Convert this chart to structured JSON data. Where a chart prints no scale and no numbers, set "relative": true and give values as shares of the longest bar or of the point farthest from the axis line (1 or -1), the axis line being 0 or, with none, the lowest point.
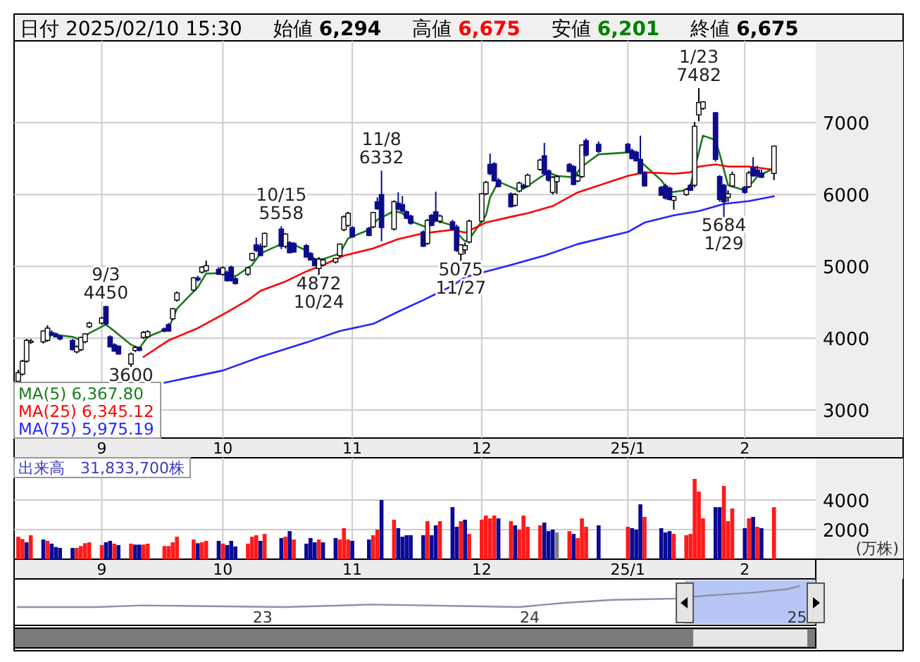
{
  "chart_data": [
    {
      "type": "candlestick",
      "grid": true,
      "legend": "bottom left",
      "annotations": [
        "日付 2025/02/10 15:30",
        "始値 **6,294**",
        "高値 **6,675**",
        "安値 **6,201**",
        "終値 **6,675**",
        {
          "text": "9/3",
          "x": "2024-09-03",
          "y": 4450
        },
        {
          "text": "4450",
          "x": "2024-09-03",
          "y": 4450
        },
        {
          "text": "3600",
          "x": "2024-09-09",
          "y": 3600
        },
        {
          "text": "10/15",
          "x": "2024-10-15",
          "y": 5558
        },
        {
          "text": "5558",
          "x": "2024-10-15",
          "y": 5558
        },
        {
          "text": "4872",
          "x": "2024-10-24",
          "y": 4872
        },
        {
          "text": "10/24",
          "x": "2024-10-24",
          "y": 4872
        },
        {
          "text": "11/8",
          "x": "2024-11-08",
          "y": 6332
        },
        {
          "text": "6332",
          "x": "2024-11-08",
          "y": 6332
        },
        {
          "text": "5075",
          "x": "2024-11-27",
          "y": 5075
        },
        {
          "text": "11/27",
          "x": "2024-11-27",
          "y": 5075
        },
        {
          "text": "1/23",
          "x": "2025-01-23",
          "y": 7482
        },
        {
          "text": "7482",
          "x": "2025-01-23",
          "y": 7482
        },
        {
          "text": "5684",
          "x": "2025-01-29",
          "y": 5684
        },
        {
          "text": "1/29",
          "x": "2025-01-29",
          "y": 5684
        }
      ],
      "x": [
        "2024-08-13",
        "2024-08-14",
        "2024-08-15",
        "2024-08-16",
        "2024-08-19",
        "2024-08-20",
        "2024-08-21",
        "2024-08-22",
        "2024-08-23",
        "2024-08-26",
        "2024-08-27",
        "2024-08-28",
        "2024-08-29",
        "2024-08-30",
        "2024-09-02",
        "2024-09-03",
        "2024-09-04",
        "2024-09-05",
        "2024-09-06",
        "2024-09-09",
        "2024-09-10",
        "2024-09-11",
        "2024-09-12",
        "2024-09-13",
        "2024-09-17",
        "2024-09-18",
        "2024-09-19",
        "2024-09-20",
        "2024-09-24",
        "2024-09-25",
        "2024-09-26",
        "2024-09-27",
        "2024-09-30",
        "2024-10-01",
        "2024-10-02",
        "2024-10-03",
        "2024-10-04",
        "2024-10-07",
        "2024-10-08",
        "2024-10-09",
        "2024-10-10",
        "2024-10-11",
        "2024-10-15",
        "2024-10-16",
        "2024-10-17",
        "2024-10-18",
        "2024-10-21",
        "2024-10-22",
        "2024-10-23",
        "2024-10-24",
        "2024-10-25",
        "2024-10-28",
        "2024-10-29",
        "2024-10-30",
        "2024-10-31",
        "2024-11-01",
        "2024-11-05",
        "2024-11-06",
        "2024-11-07",
        "2024-11-08",
        "2024-11-11",
        "2024-11-12",
        "2024-11-13",
        "2024-11-14",
        "2024-11-15",
        "2024-11-18",
        "2024-11-19",
        "2024-11-20",
        "2024-11-21",
        "2024-11-22",
        "2024-11-25",
        "2024-11-26",
        "2024-11-27",
        "2024-11-28",
        "2024-11-29",
        "2024-12-02",
        "2024-12-03",
        "2024-12-04",
        "2024-12-05",
        "2024-12-06",
        "2024-12-09",
        "2024-12-10",
        "2024-12-11",
        "2024-12-12",
        "2024-12-13",
        "2024-12-16",
        "2024-12-17",
        "2024-12-18",
        "2024-12-19",
        "2024-12-20",
        "2024-12-23",
        "2024-12-24",
        "2024-12-25",
        "2024-12-26",
        "2024-12-27",
        "2024-12-30",
        "2025-01-06",
        "2025-01-07",
        "2025-01-08",
        "2025-01-09",
        "2025-01-10",
        "2025-01-14",
        "2025-01-15",
        "2025-01-16",
        "2025-01-17",
        "2025-01-20",
        "2025-01-21",
        "2025-01-22",
        "2025-01-23",
        "2025-01-24",
        "2025-01-27",
        "2025-01-28",
        "2025-01-29",
        "2025-01-30",
        "2025-01-31",
        "2025-02-03",
        "2025-02-04",
        "2025-02-05",
        "2025-02-06",
        "2025-02-07",
        "2025-02-10"
      ],
      "ohlc": [
        [
          3400,
          3560,
          3380,
          3520
        ],
        [
          3500,
          3700,
          3480,
          3680
        ],
        [
          3680,
          3990,
          3660,
          3970
        ],
        [
          3950,
          3990,
          3920,
          3960
        ],
        [
          3950,
          4110,
          3930,
          4100
        ],
        [
          3970,
          4180,
          3950,
          4140
        ],
        [
          4080,
          4110,
          4030,
          4050
        ],
        [
          4060,
          4080,
          4010,
          4020
        ],
        [
          4030,
          4050,
          3970,
          3990
        ],
        [
          3970,
          3990,
          3830,
          3840
        ],
        [
          3810,
          3900,
          3790,
          3880
        ],
        [
          3840,
          4020,
          3820,
          4010
        ],
        [
          3950,
          4070,
          3930,
          4060
        ],
        [
          4160,
          4230,
          4140,
          4210
        ],
        [
          4210,
          4300,
          4190,
          4280
        ],
        [
          4440,
          4450,
          4180,
          4200
        ],
        [
          4020,
          4040,
          3870,
          3880
        ],
        [
          3910,
          3930,
          3810,
          3820
        ],
        [
          3890,
          3900,
          3770,
          3780
        ],
        [
          3640,
          3800,
          3600,
          3780
        ],
        [
          3830,
          3890,
          3810,
          3870
        ],
        [
          3870,
          3880,
          3820,
          3830
        ],
        [
          4010,
          4100,
          3990,
          4080
        ],
        [
          4020,
          4110,
          4000,
          4090
        ],
        [
          4130,
          4150,
          4080,
          4100
        ],
        [
          4190,
          4210,
          4090,
          4100
        ],
        [
          4270,
          4420,
          4250,
          4410
        ],
        [
          4530,
          4650,
          4510,
          4630
        ],
        [
          4670,
          4850,
          4650,
          4840
        ],
        [
          4840,
          4870,
          4790,
          4810
        ],
        [
          4920,
          5000,
          4900,
          4990
        ],
        [
          4940,
          5080,
          4920,
          5010
        ],
        [
          4960,
          4990,
          4880,
          4890
        ],
        [
          4890,
          5000,
          4870,
          4980
        ],
        [
          4920,
          4940,
          4790,
          4800
        ],
        [
          4990,
          5010,
          4790,
          4800
        ],
        [
          4830,
          4850,
          4750,
          4760
        ],
        [
          4890,
          4990,
          4870,
          4980
        ],
        [
          5090,
          5190,
          5070,
          5180
        ],
        [
          5300,
          5400,
          5200,
          5220
        ],
        [
          5280,
          5320,
          5140,
          5150
        ],
        [
          5280,
          5470,
          5260,
          5460
        ],
        [
          5520,
          5558,
          5240,
          5280
        ],
        [
          5280,
          5460,
          5250,
          5450
        ],
        [
          5330,
          5350,
          5180,
          5190
        ],
        [
          5320,
          5340,
          5190,
          5200
        ],
        [
          5290,
          5310,
          5120,
          5130
        ],
        [
          5180,
          5200,
          5080,
          5090
        ],
        [
          5100,
          5120,
          5000,
          5010
        ],
        [
          4970,
          5130,
          4872,
          5100
        ],
        [
          5020,
          5110,
          5000,
          5090
        ],
        [
          5060,
          5120,
          5040,
          5110
        ],
        [
          5150,
          5320,
          5130,
          5310
        ],
        [
          5510,
          5710,
          5490,
          5690
        ],
        [
          5570,
          5760,
          5550,
          5740
        ],
        [
          5540,
          5560,
          5400,
          5410
        ],
        [
          5530,
          5550,
          5420,
          5430
        ],
        [
          5550,
          5760,
          5530,
          5750
        ],
        [
          5900,
          5960,
          5790,
          5800
        ],
        [
          6000,
          6332,
          5350,
          5540
        ],
        [
          5520,
          5920,
          5500,
          5900
        ],
        [
          5880,
          6030,
          5780,
          5800
        ],
        [
          5860,
          5980,
          5750,
          5770
        ],
        [
          5760,
          5780,
          5660,
          5670
        ],
        [
          5700,
          5720,
          5580,
          5600
        ],
        [
          5480,
          5500,
          5270,
          5280
        ],
        [
          5320,
          5660,
          5300,
          5640
        ],
        [
          5710,
          5730,
          5560,
          5570
        ],
        [
          5760,
          6040,
          5620,
          5640
        ],
        [
          5630,
          5720,
          5600,
          5700
        ],
        [
          5620,
          5650,
          5500,
          5520
        ],
        [
          5550,
          5580,
          5200,
          5220
        ],
        [
          5170,
          5310,
          5075,
          5300
        ],
        [
          5230,
          5330,
          5170,
          5290
        ],
        [
          5340,
          5650,
          5320,
          5630
        ],
        [
          5630,
          6020,
          5610,
          6010
        ],
        [
          6010,
          6190,
          5990,
          6170
        ],
        [
          6420,
          6570,
          6270,
          6290
        ],
        [
          6430,
          6450,
          6180,
          6190
        ],
        [
          6200,
          6230,
          6100,
          6110
        ],
        [
          6010,
          6030,
          5820,
          5830
        ],
        [
          5850,
          6020,
          5830,
          6000
        ],
        [
          6050,
          6180,
          6030,
          6160
        ],
        [
          6130,
          6150,
          6080,
          6100
        ],
        [
          6120,
          6290,
          6100,
          6270
        ],
        [
          6350,
          6500,
          6330,
          6480
        ],
        [
          6540,
          6720,
          6270,
          6290
        ],
        [
          6330,
          6350,
          6180,
          6200
        ],
        [
          6030,
          6260,
          6000,
          6240
        ],
        [
          6180,
          6270,
          6010,
          6250
        ],
        [
          6420,
          6440,
          6310,
          6320
        ],
        [
          6390,
          6410,
          6130,
          6140
        ],
        [
          6190,
          6290,
          6170,
          6260
        ],
        [
          6250,
          6700,
          6230,
          6690
        ],
        [
          6750,
          6780,
          6530,
          6550
        ],
        [
          6700,
          6740,
          6580,
          6600
        ],
        [
          6700,
          6720,
          6580,
          6590
        ],
        [
          6610,
          6640,
          6490,
          6500
        ],
        [
          6590,
          6610,
          6460,
          6470
        ],
        [
          6490,
          6820,
          6280,
          6300
        ],
        [
          6300,
          6320,
          6110,
          6120
        ],
        [
          6100,
          6120,
          5980,
          5990
        ],
        [
          6120,
          6150,
          5930,
          5950
        ],
        [
          6090,
          6110,
          5920,
          5930
        ],
        [
          5920,
          5980,
          5790,
          5970
        ],
        [
          6000,
          6090,
          5980,
          6070
        ],
        [
          6130,
          6150,
          6050,
          6060
        ],
        [
          6130,
          7010,
          6100,
          6950
        ],
        [
          7110,
          7482,
          7020,
          7280
        ],
        [
          7200,
          7300,
          7180,
          7290
        ],
        [
          7140,
          7150,
          6460,
          6490
        ],
        [
          6250,
          6270,
          5900,
          5930
        ],
        [
          6130,
          6150,
          5684,
          5900
        ],
        [
          5960,
          6060,
          5900,
          6010
        ],
        [
          6120,
          6320,
          6100,
          6280
        ],
        [
          6100,
          6120,
          6010,
          6030
        ],
        [
          6110,
          6330,
          6090,
          6300
        ],
        [
          6380,
          6520,
          6250,
          6260
        ],
        [
          6340,
          6400,
          6250,
          6260
        ],
        [
          6300,
          6350,
          6230,
          6240
        ],
        [
          6294,
          6675,
          6201,
          6675
        ]
      ],
      "series": [
        {
          "name": "MA(5) 6,367.80",
          "type": "line",
          "color": "#1a7a1a",
          "x": [
            "2024-08-19",
            "2024-08-21",
            "2024-08-26",
            "2024-08-28",
            "2024-08-30",
            "2024-09-03",
            "2024-09-05",
            "2024-09-09",
            "2024-09-11",
            "2024-09-13",
            "2024-09-18",
            "2024-09-20",
            "2024-09-25",
            "2024-09-27",
            "2024-10-02",
            "2024-10-04",
            "2024-10-08",
            "2024-10-10",
            "2024-10-15",
            "2024-10-17",
            "2024-10-21",
            "2024-10-23",
            "2024-10-25",
            "2024-10-29",
            "2024-10-31",
            "2024-11-05",
            "2024-11-07",
            "2024-11-11",
            "2024-11-13",
            "2024-11-15",
            "2024-11-19",
            "2024-11-21",
            "2024-11-25",
            "2024-11-26",
            "2024-11-28",
            "2024-11-29",
            "2024-12-03",
            "2024-12-04",
            "2024-12-06",
            "2024-12-10",
            "2024-12-12",
            "2024-12-16",
            "2024-12-18",
            "2024-12-20",
            "2024-12-24",
            "2024-12-26",
            "2024-12-30",
            "2025-01-07",
            "2025-01-09",
            "2025-01-14",
            "2025-01-16",
            "2025-01-20",
            "2025-01-21",
            "2025-01-24",
            "2025-01-27",
            "2025-01-28",
            "2025-01-30",
            "2025-02-03",
            "2025-02-05",
            "2025-02-06",
            "2025-02-10"
          ],
          "values": [
            3940,
            4050,
            4020,
            3970,
            4070,
            4190,
            4100,
            3910,
            3860,
            4020,
            4140,
            4410,
            4710,
            4900,
            4910,
            4860,
            5020,
            5180,
            5310,
            5330,
            5220,
            5100,
            5100,
            5180,
            5390,
            5510,
            5650,
            5770,
            5740,
            5630,
            5540,
            5640,
            5570,
            5470,
            5350,
            5380,
            5710,
            5960,
            6180,
            6080,
            6080,
            6240,
            6310,
            6260,
            6240,
            6390,
            6560,
            6590,
            6460,
            6200,
            6030,
            6060,
            6130,
            6820,
            6760,
            6560,
            6130,
            6060,
            6180,
            6250,
            6367.8
          ]
        },
        {
          "name": "MA(25) 6,345.12",
          "type": "line",
          "color": "#ff0000",
          "x": [
            "2024-09-12",
            "2024-09-18",
            "2024-09-25",
            "2024-10-01",
            "2024-10-07",
            "2024-10-10",
            "2024-10-16",
            "2024-10-21",
            "2024-10-25",
            "2024-10-30",
            "2024-11-06",
            "2024-11-12",
            "2024-11-18",
            "2024-11-25",
            "2024-11-28",
            "2024-12-03",
            "2024-12-09",
            "2024-12-13",
            "2024-12-19",
            "2024-12-25",
            "2025-01-06",
            "2025-01-10",
            "2025-01-17",
            "2025-01-21",
            "2025-01-23",
            "2025-01-27",
            "2025-01-30",
            "2025-02-04",
            "2025-02-10"
          ],
          "values": [
            3740,
            3970,
            4140,
            4330,
            4530,
            4660,
            4790,
            4930,
            5020,
            5150,
            5250,
            5380,
            5460,
            5510,
            5470,
            5610,
            5690,
            5740,
            5840,
            6030,
            6260,
            6310,
            6290,
            6310,
            6390,
            6420,
            6390,
            6390,
            6345.12
          ]
        },
        {
          "name": "MA(75) 5,975.19",
          "type": "line",
          "color": "#2424ff",
          "x": [
            "2024-09-17",
            "2024-10-01",
            "2024-10-10",
            "2024-10-21",
            "2024-10-29",
            "2024-11-06",
            "2024-11-12",
            "2024-11-18",
            "2024-11-25",
            "2024-11-28",
            "2024-12-09",
            "2024-12-17",
            "2024-12-25",
            "2025-01-06",
            "2025-01-10",
            "2025-01-17",
            "2025-01-23",
            "2025-01-29",
            "2025-02-04",
            "2025-02-10"
          ],
          "values": [
            3380,
            3550,
            3740,
            3940,
            4100,
            4200,
            4370,
            4530,
            4730,
            4850,
            5020,
            5150,
            5310,
            5480,
            5610,
            5710,
            5770,
            5870,
            5910,
            5975.19
          ]
        }
      ],
      "ylim": [
        2610,
        8140
      ],
      "yticks": [
        3000,
        4000,
        5000,
        6000,
        7000
      ],
      "xlim": [
        "2024-08-12",
        "2025-02-20"
      ],
      "xticks": [
        {
          "value": "2024-09-02",
          "label": "9"
        },
        {
          "value": "2024-10-01",
          "label": "10"
        },
        {
          "value": "2024-11-01",
          "label": "11"
        },
        {
          "value": "2024-12-02",
          "label": "12"
        },
        {
          "value": "2025-01-06",
          "label": "25/1"
        },
        {
          "value": "2025-02-03",
          "label": "2"
        }
      ]
    },
    {
      "type": "bar",
      "title": "出来高　31,833,700株",
      "ylabel": "(万株)",
      "grid": true,
      "x": [
        "2024-08-13",
        "2024-08-14",
        "2024-08-15",
        "2024-08-16",
        "2024-08-19",
        "2024-08-20",
        "2024-08-21",
        "2024-08-22",
        "2024-08-23",
        "2024-08-26",
        "2024-08-27",
        "2024-08-28",
        "2024-08-29",
        "2024-08-30",
        "2024-09-02",
        "2024-09-03",
        "2024-09-04",
        "2024-09-05",
        "2024-09-06",
        "2024-09-09",
        "2024-09-10",
        "2024-09-11",
        "2024-09-12",
        "2024-09-13",
        "2024-09-17",
        "2024-09-18",
        "2024-09-19",
        "2024-09-20",
        "2024-09-24",
        "2024-09-25",
        "2024-09-26",
        "2024-09-27",
        "2024-09-30",
        "2024-10-01",
        "2024-10-02",
        "2024-10-03",
        "2024-10-04",
        "2024-10-07",
        "2024-10-08",
        "2024-10-09",
        "2024-10-10",
        "2024-10-11",
        "2024-10-15",
        "2024-10-16",
        "2024-10-17",
        "2024-10-18",
        "2024-10-21",
        "2024-10-22",
        "2024-10-23",
        "2024-10-24",
        "2024-10-25",
        "2024-10-28",
        "2024-10-29",
        "2024-10-30",
        "2024-10-31",
        "2024-11-01",
        "2024-11-05",
        "2024-11-06",
        "2024-11-07",
        "2024-11-08",
        "2024-11-11",
        "2024-11-12",
        "2024-11-13",
        "2024-11-14",
        "2024-11-15",
        "2024-11-18",
        "2024-11-19",
        "2024-11-20",
        "2024-11-21",
        "2024-11-22",
        "2024-11-25",
        "2024-11-26",
        "2024-11-27",
        "2024-11-28",
        "2024-11-29",
        "2024-12-02",
        "2024-12-03",
        "2024-12-04",
        "2024-12-05",
        "2024-12-06",
        "2024-12-09",
        "2024-12-10",
        "2024-12-11",
        "2024-12-12",
        "2024-12-13",
        "2024-12-16",
        "2024-12-17",
        "2024-12-18",
        "2024-12-19",
        "2024-12-20",
        "2024-12-23",
        "2024-12-24",
        "2024-12-25",
        "2024-12-26",
        "2024-12-27",
        "2024-12-30",
        "2025-01-06",
        "2025-01-07",
        "2025-01-08",
        "2025-01-09",
        "2025-01-10",
        "2025-01-14",
        "2025-01-15",
        "2025-01-16",
        "2025-01-17",
        "2025-01-20",
        "2025-01-21",
        "2025-01-22",
        "2025-01-23",
        "2025-01-24",
        "2025-01-27",
        "2025-01-28",
        "2025-01-29",
        "2025-01-30",
        "2025-01-31",
        "2025-02-03",
        "2025-02-04",
        "2025-02-05",
        "2025-02-06",
        "2025-02-07",
        "2025-02-10"
      ],
      "values": [
        1520,
        1365,
        1140,
        1620,
        1330,
        1240,
        1050,
        825,
        760,
        760,
        760,
        890,
        1080,
        1140,
        950,
        1140,
        1240,
        1050,
        950,
        1050,
        985,
        985,
        985,
        1050,
        890,
        890,
        1140,
        1520,
        1330,
        1080,
        1140,
        1240,
        1240,
        1050,
        950,
        1240,
        860,
        1050,
        1520,
        1620,
        1240,
        1710,
        1430,
        1520,
        1900,
        1330,
        1050,
        1430,
        1140,
        1330,
        1140,
        1430,
        1330,
        2100,
        1330,
        1240,
        1330,
        1620,
        2000,
        4000,
        2670,
        2100,
        1520,
        1620,
        1620,
        1620,
        2570,
        1620,
        2290,
        2570,
        3520,
        2190,
        2570,
        2670,
        1710,
        2670,
        2950,
        2760,
        2950,
        2760,
        2570,
        2290,
        2000,
        2950,
        2190,
        2290,
        2480,
        1900,
        2000,
        1810,
        1900,
        1710,
        1430,
        2760,
        2190,
        2290,
        2190,
        2100,
        2000,
        3710,
        2860,
        2100,
        1810,
        1900,
        1710,
        1620,
        1710,
        5430,
        4570,
        2760,
        3520,
        3520,
        4950,
        2570,
        3430,
        2100,
        2760,
        2860,
        2190,
        2100,
        3520
      ],
      "colors": [
        "#ff1a1a",
        "#ff1a1a",
        "#0a0a96",
        "#ff1a1a",
        "#0a0a96",
        "#ff1a1a",
        "#0a0a96",
        "#0a0a96",
        "#0a0a96",
        "#0a0a96",
        "#ff1a1a",
        "#ff1a1a",
        "#ff1a1a",
        "#ff1a1a",
        "#ff1a1a",
        "#0a0a96",
        "#0a0a96",
        "#ff1a1a",
        "#0a0a96",
        "#ff1a1a",
        "#0a0a96",
        "#0a0a96",
        "#ff1a1a",
        "#ff1a1a",
        "#ff1a1a",
        "#ff1a1a",
        "#ff1a1a",
        "#ff1a1a",
        "#ff1a1a",
        "#0a0a96",
        "#ff1a1a",
        "#ff1a1a",
        "#0a0a96",
        "#ff1a1a",
        "#0a0a96",
        "#0a0a96",
        "#0a0a96",
        "#ff1a1a",
        "#ff1a1a",
        "#ff1a1a",
        "#0a0a96",
        "#ff1a1a",
        "#0a0a96",
        "#ff1a1a",
        "#0a0a96",
        "#ff1a1a",
        "#0a0a96",
        "#0a0a96",
        "#0a0a96",
        "#ff1a1a",
        "#0a0a96",
        "#0a0a96",
        "#ff1a1a",
        "#ff1a1a",
        "#ff1a1a",
        "#0a0a96",
        "#0a0a96",
        "#ff1a1a",
        "#ff1a1a",
        "#0a0a96",
        "#ff1a1a",
        "#0a0a96",
        "#0a0a96",
        "#0a0a96",
        "#0a0a96",
        "#0a0a96",
        "#ff1a1a",
        "#0a0a96",
        "#0a0a96",
        "#ff1a1a",
        "#0a0a96",
        "#0a0a96",
        "#ff1a1a",
        "#0a0a96",
        "#ff1a1a",
        "#ff1a1a",
        "#ff1a1a",
        "#ff1a1a",
        "#ff1a1a",
        "#0a0a96",
        "#ff1a1a",
        "#0a0a96",
        "#ff1a1a",
        "#ff1a1a",
        "#ff1a1a",
        "#ff1a1a",
        "#0a0a96",
        "#0a0a96",
        "#0a0a96",
        "#808080",
        "#ff1a1a",
        "#0a0a96",
        "#ff1a1a",
        "#ff1a1a",
        "#ff1a1a",
        "#0a0a96",
        "#ff1a1a",
        "#0a0a96",
        "#0a0a96",
        "#0a0a96",
        "#ff1a1a",
        "#0a0a96",
        "#0a0a96",
        "#0a0a96",
        "#ff1a1a",
        "#ff1a1a",
        "#ff1a1a",
        "#ff1a1a",
        "#ff1a1a",
        "#ff1a1a",
        "#0a0a96",
        "#0a0a96",
        "#ff1a1a",
        "#ff1a1a",
        "#ff1a1a",
        "#0a0a96",
        "#ff1a1a",
        "#0a0a96",
        "#ff1a1a",
        "#0a0a96",
        "#ff1a1a"
      ],
      "ylim": [
        0,
        6860
      ],
      "yticks": [
        2000,
        4000
      ],
      "xlim": [
        "2024-08-12",
        "2025-02-20"
      ],
      "xticks": [
        {
          "value": "2024-09-02",
          "label": "9"
        },
        {
          "value": "2024-10-01",
          "label": "10"
        },
        {
          "value": "2024-11-01",
          "label": "11"
        },
        {
          "value": "2024-12-02",
          "label": "12"
        },
        {
          "value": "2025-01-06",
          "label": "25/1"
        },
        {
          "value": "2025-02-03",
          "label": "2"
        }
      ]
    },
    {
      "type": "line",
      "relative": true,
      "x": [
        22.08,
        22.38,
        22.55,
        23.08,
        23.41,
        23.78,
        23.96,
        24.13,
        24.31,
        24.54,
        24.66,
        24.83,
        24.96,
        25.01
      ],
      "series": [
        {
          "color": "#8f8fa8",
          "values": [
            0,
            0,
            0.08,
            0,
            0.12,
            0.04,
            0,
            0.2,
            0.34,
            0.4,
            0.54,
            0.68,
            0.84,
            1
          ]
        }
      ],
      "xlim": [
        22.07,
        25.07
      ],
      "xticks": [
        23,
        24,
        25
      ],
      "bands": [
        {
          "axis": "x",
          "from": 24.58,
          "to": 25.07,
          "color": "#b7c6f5"
        }
      ]
    }
  ]
}
